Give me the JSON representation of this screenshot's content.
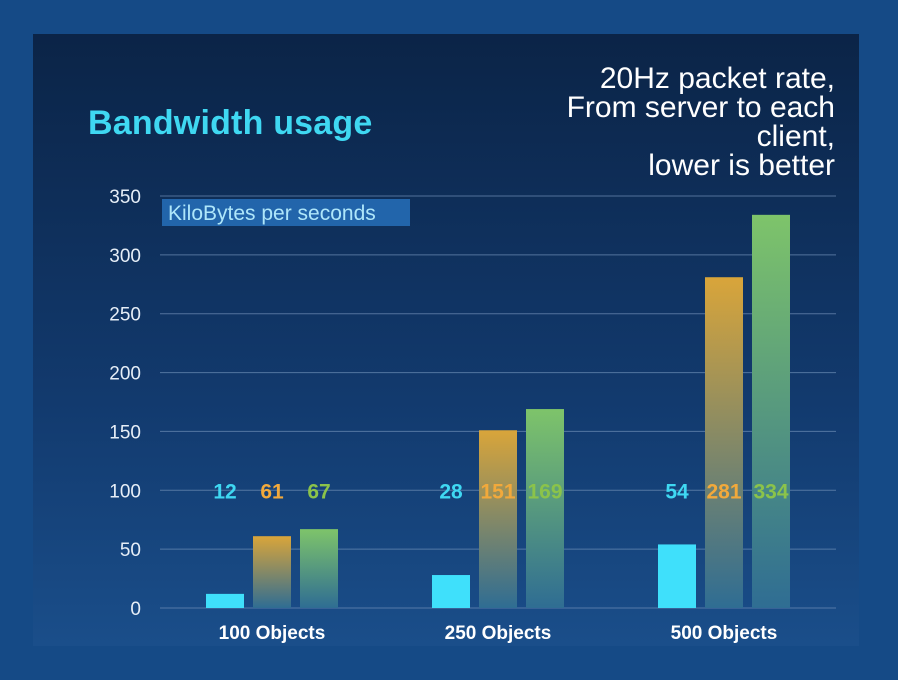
{
  "chart_data": {
    "type": "bar",
    "title": "Bandwidth usage",
    "subtitle_lines": [
      "20Hz packet rate,",
      "From server to each",
      "client,",
      "lower is better"
    ],
    "unit_label": "KiloBytes per seconds",
    "categories": [
      "100 Objects",
      "250 Objects",
      "500 Objects"
    ],
    "series": [
      {
        "values": [
          12,
          28,
          54
        ],
        "color": "#3fe0fb",
        "label_color": "#3fd8f2"
      },
      {
        "values": [
          61,
          151,
          281
        ],
        "color": "#d9a53a",
        "label_color": "#f2a93b"
      },
      {
        "values": [
          67,
          169,
          334
        ],
        "color": "#7ec46a",
        "label_color": "#8bc34a"
      }
    ],
    "y_ticks": [
      0,
      50,
      100,
      150,
      200,
      250,
      300,
      350
    ],
    "ylim": [
      0,
      350
    ],
    "grid": true,
    "value_label_level": 100
  }
}
